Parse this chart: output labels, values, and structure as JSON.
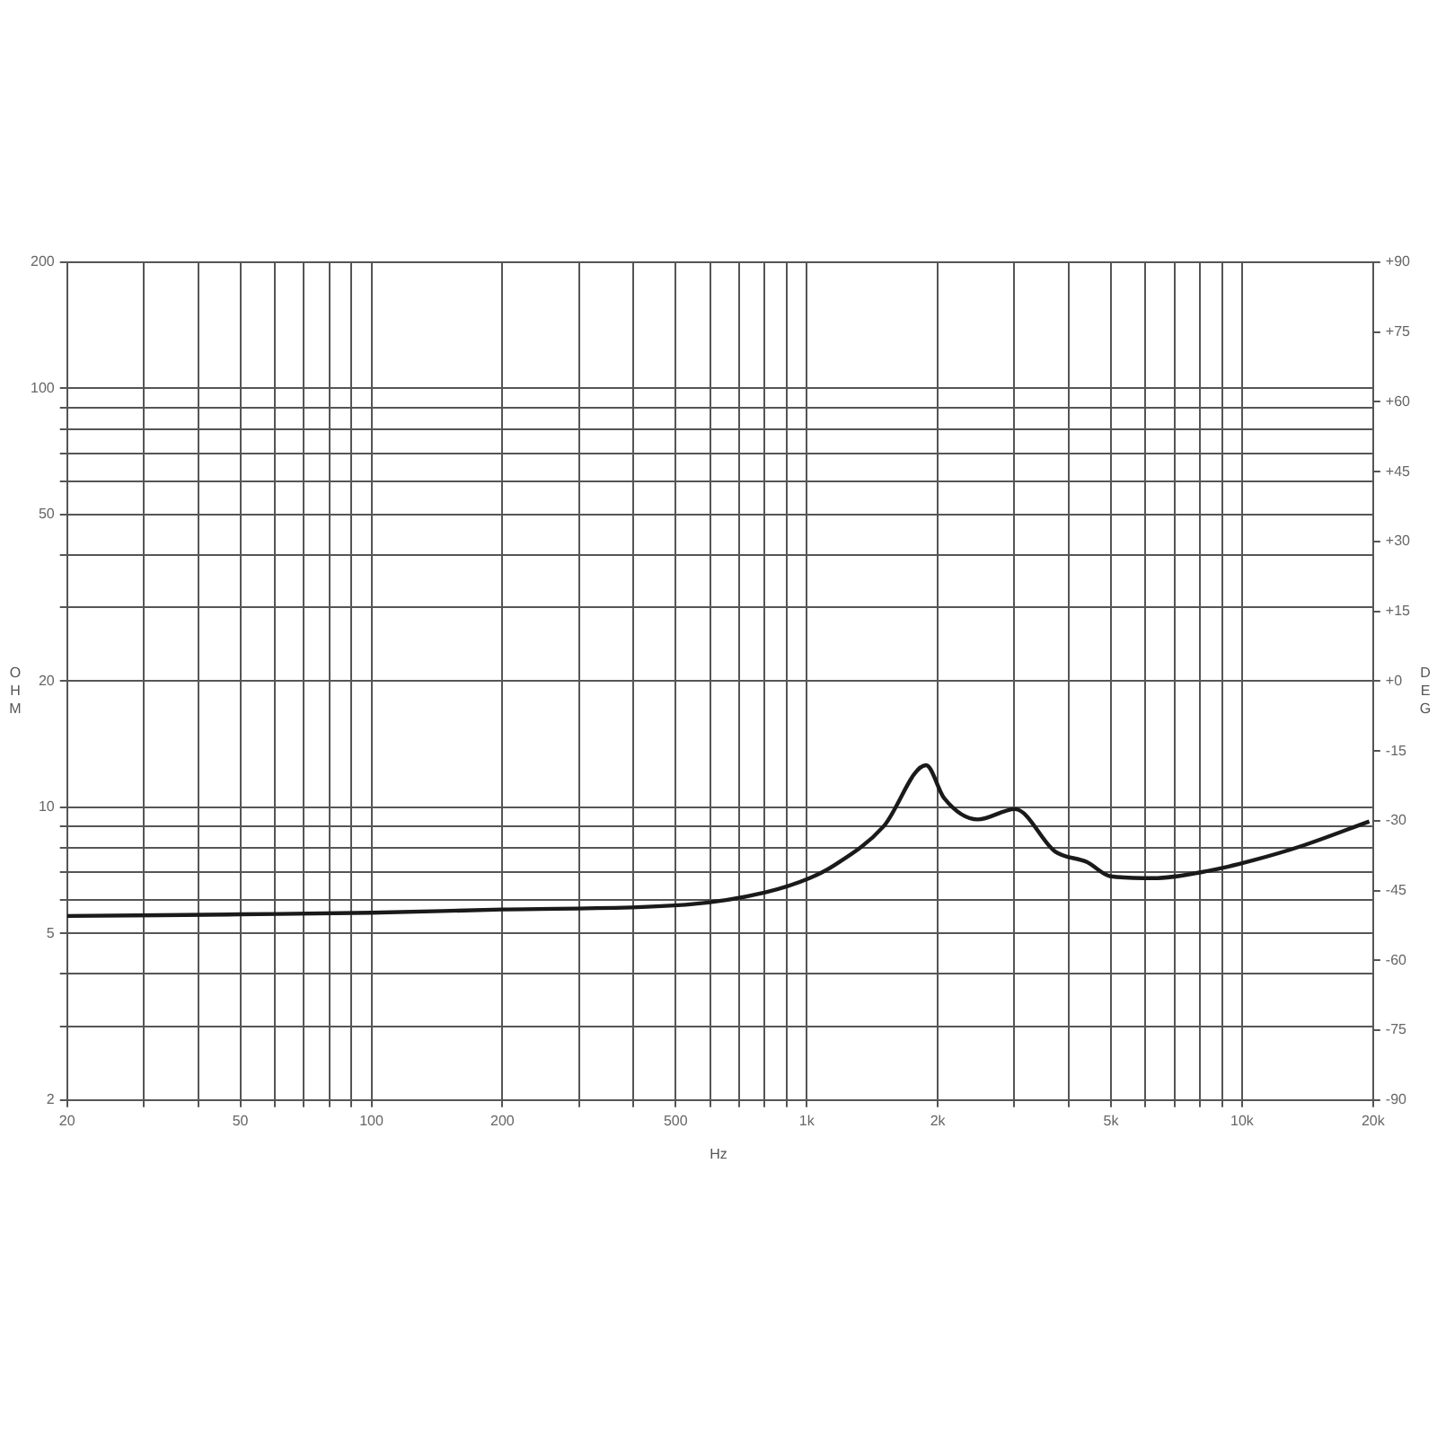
{
  "chart_data": {
    "type": "line",
    "xlabel": "Hz",
    "ylabel": "OHM",
    "y2label": "DEG",
    "log": "xy",
    "grid": true,
    "legend": false,
    "marker": "none",
    "line_style": "solid",
    "x": [
      20,
      50,
      100,
      200,
      527,
      803,
      1015,
      1153,
      1500,
      1880,
      2070,
      2470,
      3010,
      3720,
      4400,
      4990,
      6250,
      8380,
      10600,
      13650,
      19600
    ],
    "series": [
      {
        "color": "#1a1a1a",
        "values": [
          5.5,
          5.55,
          5.6,
          5.7,
          5.85,
          6.26,
          6.77,
          7.25,
          8.99,
          12.6,
          10.5,
          9.35,
          9.9,
          7.84,
          7.4,
          6.84,
          6.77,
          7.05,
          7.47,
          8.07,
          9.25
        ]
      }
    ],
    "xlim": [
      20,
      20000
    ],
    "xticks": [
      20,
      {
        "value": 30,
        "label": null
      },
      {
        "value": 40,
        "label": null
      },
      50,
      {
        "value": 60,
        "label": null
      },
      {
        "value": 70,
        "label": null
      },
      {
        "value": 80,
        "label": null
      },
      {
        "value": 90,
        "label": null
      },
      100,
      200,
      {
        "value": 300,
        "label": null
      },
      {
        "value": 400,
        "label": null
      },
      500,
      {
        "value": 600,
        "label": null
      },
      {
        "value": 700,
        "label": null
      },
      {
        "value": 800,
        "label": null
      },
      {
        "value": 900,
        "label": null
      },
      {
        "value": 1000,
        "label": "1k"
      },
      {
        "value": 2000,
        "label": "2k"
      },
      {
        "value": 3000,
        "label": null
      },
      {
        "value": 4000,
        "label": null
      },
      {
        "value": 5000,
        "label": "5k"
      },
      {
        "value": 6000,
        "label": null
      },
      {
        "value": 7000,
        "label": null
      },
      {
        "value": 8000,
        "label": null
      },
      {
        "value": 9000,
        "label": null
      },
      {
        "value": 10000,
        "label": "10k"
      },
      {
        "value": 20000,
        "label": "20k"
      }
    ],
    "ylim": [
      2,
      200
    ],
    "yticks": [
      2,
      {
        "value": 3,
        "label": null
      },
      {
        "value": 4,
        "label": null
      },
      5,
      {
        "value": 6,
        "label": null
      },
      {
        "value": 7,
        "label": null
      },
      {
        "value": 8,
        "label": null
      },
      {
        "value": 9,
        "label": null
      },
      10,
      20,
      {
        "value": 30,
        "label": null
      },
      {
        "value": 40,
        "label": null
      },
      50,
      {
        "value": 60,
        "label": null
      },
      {
        "value": 70,
        "label": null
      },
      {
        "value": 80,
        "label": null
      },
      {
        "value": 90,
        "label": null
      },
      100,
      200
    ],
    "y2lim": [
      -90,
      90
    ],
    "y2ticks": [
      {
        "value": -90,
        "label": "-90"
      },
      {
        "value": -75,
        "label": "-75"
      },
      {
        "value": -60,
        "label": "-60"
      },
      {
        "value": -45,
        "label": "-45"
      },
      {
        "value": -30,
        "label": "-30"
      },
      {
        "value": -15,
        "label": "-15"
      },
      {
        "value": 0,
        "label": "+0"
      },
      {
        "value": 15,
        "label": "+15"
      },
      {
        "value": 30,
        "label": "+30"
      },
      {
        "value": 45,
        "label": "+45"
      },
      {
        "value": 60,
        "label": "+60"
      },
      {
        "value": 75,
        "label": "+75"
      },
      {
        "value": 90,
        "label": "+90"
      }
    ]
  }
}
